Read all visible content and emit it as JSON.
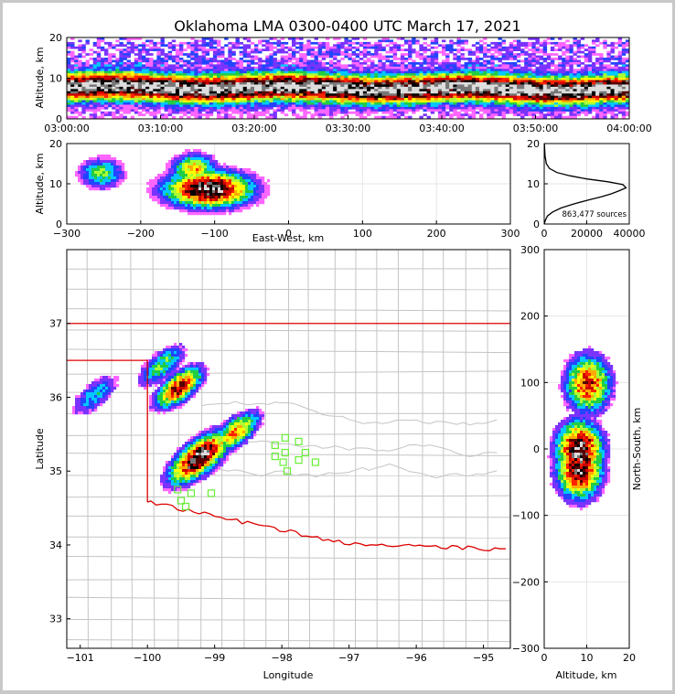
{
  "chart_data": [
    {
      "panel": "altitude-vs-time",
      "type": "heatmap",
      "title": "Oklahoma LMA 0300-0400 UTC March 17, 2021",
      "xlabel": "",
      "ylabel": "Altitude, km",
      "xlim": [
        "03:00:00",
        "04:00:00"
      ],
      "ylim": [
        0,
        20
      ],
      "xticks": [
        "03:00:00",
        "03:10:00",
        "03:20:00",
        "03:30:00",
        "03:40:00",
        "03:50:00",
        "04:00:00"
      ],
      "yticks": [
        "0",
        "10",
        "20"
      ],
      "peak_altitude_km": 8,
      "band_altitude_km": [
        1,
        16
      ]
    },
    {
      "panel": "altitude-vs-east-west",
      "type": "heatmap",
      "xlabel": "East-West, km",
      "ylabel": "Altitude, km",
      "xlim": [
        -300,
        300
      ],
      "ylim": [
        0,
        20
      ],
      "xticks": [
        "−300",
        "−200",
        "−100",
        "0",
        "100",
        "200",
        "300"
      ],
      "yticks": [
        "0",
        "10",
        "20"
      ],
      "clusters": [
        {
          "x_km": -255,
          "z_km": 13,
          "intensity": 0.45
        },
        {
          "x_km": -110,
          "z_km": 9,
          "intensity": 1.0
        },
        {
          "x_km": -130,
          "z_km": 14,
          "intensity": 0.6
        }
      ]
    },
    {
      "panel": "altitude-histogram",
      "type": "line",
      "xlim": [
        0,
        40000
      ],
      "ylim": [
        0,
        20
      ],
      "xticks": [
        "0",
        "20000",
        "40000"
      ],
      "yticks": [
        "0",
        "10",
        "20"
      ],
      "annotation": "863,477 sources",
      "x": [
        0,
        600,
        1500,
        4000,
        8000,
        14000,
        21000,
        27000,
        31500,
        35000,
        38500,
        37000,
        30000,
        20000,
        12000,
        6000,
        2500,
        1000,
        400,
        100
      ],
      "y": [
        0,
        1,
        2,
        3,
        4,
        5,
        6,
        6.8,
        7.5,
        8.2,
        9,
        9.8,
        10.5,
        11.2,
        12,
        12.8,
        13.8,
        15,
        17,
        20
      ]
    },
    {
      "panel": "plan-view-map",
      "type": "heatmap",
      "xlabel": "Longitude",
      "ylabel": "Latitude",
      "xlim": [
        -101.2,
        -94.6
      ],
      "ylim": [
        32.6,
        38
      ],
      "xticks": [
        "−101",
        "−100",
        "−99",
        "−98",
        "−97",
        "−96",
        "−95"
      ],
      "yticks": [
        "33",
        "34",
        "35",
        "36",
        "37"
      ],
      "cells": [
        {
          "lon": -99.25,
          "lat": 35.2,
          "intensity": 1.0
        },
        {
          "lon": -98.7,
          "lat": 35.55,
          "intensity": 0.65
        },
        {
          "lon": -99.55,
          "lat": 36.15,
          "intensity": 0.8
        },
        {
          "lon": -99.8,
          "lat": 36.45,
          "intensity": 0.45
        },
        {
          "lon": -100.8,
          "lat": 36.05,
          "intensity": 0.35
        }
      ],
      "stations": [
        [
          -97.95,
          35.45
        ],
        [
          -97.75,
          35.4
        ],
        [
          -98.1,
          35.35
        ],
        [
          -97.95,
          35.25
        ],
        [
          -97.65,
          35.25
        ],
        [
          -98.1,
          35.2
        ],
        [
          -97.75,
          35.15
        ],
        [
          -97.5,
          35.12
        ],
        [
          -97.98,
          35.12
        ],
        [
          -97.92,
          35.0
        ],
        [
          -99.55,
          34.75
        ],
        [
          -99.35,
          34.7
        ],
        [
          -99.05,
          34.7
        ],
        [
          -99.5,
          34.6
        ],
        [
          -99.43,
          34.52
        ]
      ]
    },
    {
      "panel": "north-south-vs-altitude",
      "type": "heatmap",
      "xlabel": "Altitude, km",
      "ylabel": "North-South, km",
      "xlim": [
        0,
        20
      ],
      "ylim": [
        -300,
        300
      ],
      "xticks": [
        "0",
        "10",
        "20"
      ],
      "yticks": [
        "−300",
        "−200",
        "−100",
        "0",
        "100",
        "200",
        "300"
      ],
      "clusters": [
        {
          "z_km": 10,
          "ns_km": 100,
          "intensity": 0.75
        },
        {
          "z_km": 8,
          "ns_km": 0,
          "intensity": 1.0
        },
        {
          "z_km": 8,
          "ns_km": -30,
          "intensity": 0.9
        }
      ]
    }
  ]
}
